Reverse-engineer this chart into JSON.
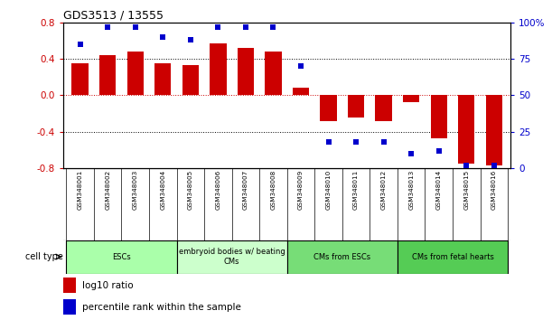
{
  "title": "GDS3513 / 13555",
  "samples": [
    "GSM348001",
    "GSM348002",
    "GSM348003",
    "GSM348004",
    "GSM348005",
    "GSM348006",
    "GSM348007",
    "GSM348008",
    "GSM348009",
    "GSM348010",
    "GSM348011",
    "GSM348012",
    "GSM348013",
    "GSM348014",
    "GSM348015",
    "GSM348016"
  ],
  "log10_ratio": [
    0.35,
    0.44,
    0.48,
    0.35,
    0.33,
    0.57,
    0.52,
    0.48,
    0.08,
    -0.28,
    -0.25,
    -0.28,
    -0.08,
    -0.47,
    -0.75,
    -0.77
  ],
  "percentile_rank": [
    85,
    97,
    97,
    90,
    88,
    97,
    97,
    97,
    70,
    18,
    18,
    18,
    10,
    12,
    2,
    2
  ],
  "bar_color": "#cc0000",
  "dot_color": "#0000cc",
  "ylim_left": [
    -0.8,
    0.8
  ],
  "ylim_right": [
    0,
    100
  ],
  "yticks_left": [
    -0.8,
    -0.4,
    0.0,
    0.4,
    0.8
  ],
  "yticks_right": [
    0,
    25,
    50,
    75,
    100
  ],
  "yticklabels_right": [
    "0",
    "25",
    "50",
    "75",
    "100%"
  ],
  "hlines_dotted": [
    -0.4,
    0.4
  ],
  "hline_zero_color": "#cc0000",
  "cell_groups": [
    {
      "label": "ESCs",
      "start": 0,
      "end": 4,
      "color": "#aaffaa"
    },
    {
      "label": "embryoid bodies w/ beating\nCMs",
      "start": 4,
      "end": 8,
      "color": "#ccffcc"
    },
    {
      "label": "CMs from ESCs",
      "start": 8,
      "end": 12,
      "color": "#77dd77"
    },
    {
      "label": "CMs from fetal hearts",
      "start": 12,
      "end": 16,
      "color": "#55cc55"
    }
  ],
  "cell_type_label": "cell type",
  "legend_label_bar": "log10 ratio",
  "legend_label_dot": "percentile rank within the sample",
  "bg_color": "#ffffff",
  "sample_box_color": "#cccccc"
}
